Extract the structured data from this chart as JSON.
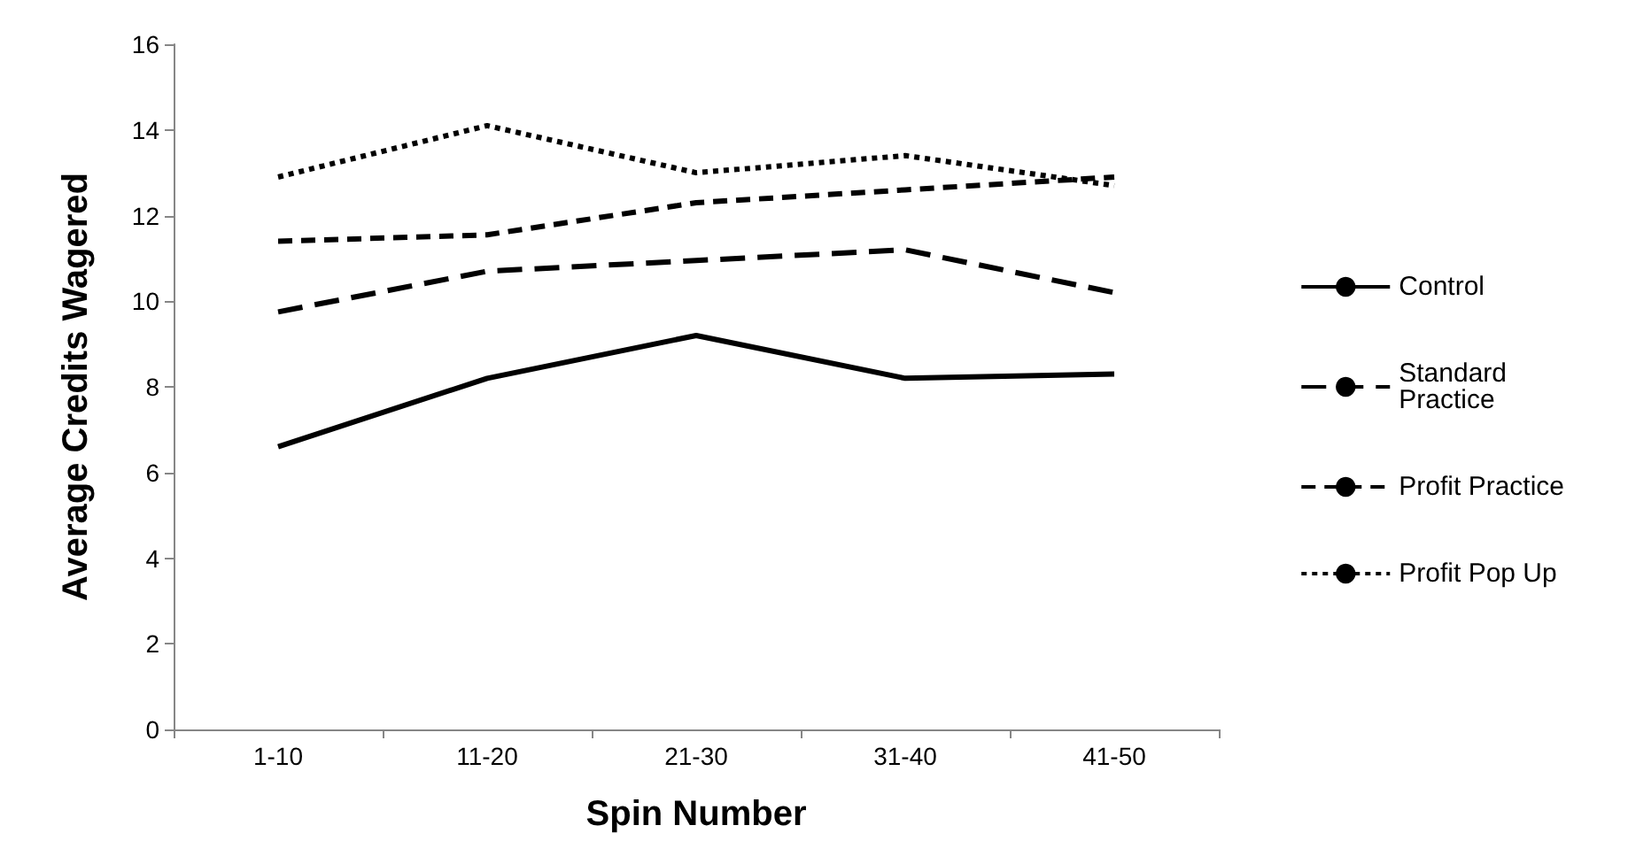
{
  "chart_data": {
    "type": "line",
    "xlabel": "Spin Number",
    "ylabel": "Average Credits Wagered",
    "categories": [
      "1-10",
      "11-20",
      "21-30",
      "31-40",
      "41-50"
    ],
    "series": [
      {
        "name": "Control",
        "color": "#000000",
        "line_style": "solid",
        "values": [
          6.6,
          8.2,
          9.2,
          8.2,
          8.3
        ]
      },
      {
        "name": "Standard Practice",
        "color": "#000000",
        "line_style": "dashed",
        "values": [
          9.75,
          10.7,
          10.95,
          11.2,
          10.2
        ]
      },
      {
        "name": "Profit Practice",
        "color": "#000000",
        "line_style": "dashed",
        "values": [
          11.4,
          11.55,
          12.3,
          12.6,
          12.9
        ]
      },
      {
        "name": "Profit Pop Up",
        "color": "#000000",
        "line_style": "dotted",
        "values": [
          12.9,
          14.1,
          13.0,
          13.4,
          12.7
        ]
      }
    ],
    "ylim": [
      0,
      16
    ],
    "yticks": [
      0,
      2,
      4,
      6,
      8,
      10,
      12,
      14,
      16
    ],
    "grid": false,
    "legend": "right",
    "marker": "none"
  }
}
